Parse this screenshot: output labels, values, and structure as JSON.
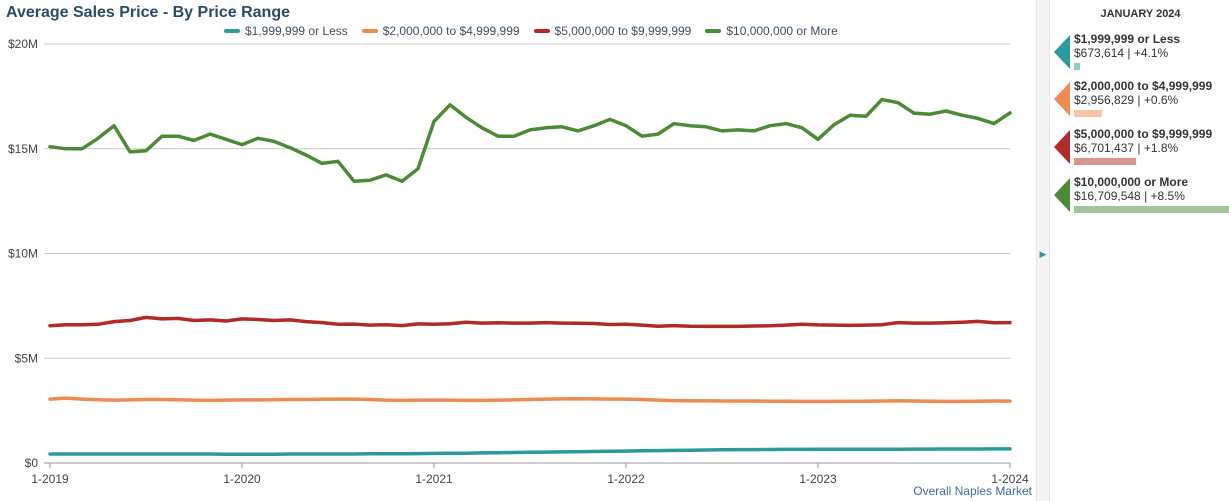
{
  "title": "Average Sales Price - By Price Range",
  "footer_note": "Overall Naples Market",
  "legend": [
    {
      "label": "$1,999,999 or Less",
      "color": "#2a9a9a"
    },
    {
      "label": "$2,000,000 to $4,999,999",
      "color": "#ee8b52"
    },
    {
      "label": "$5,000,000 to $9,999,999",
      "color": "#b02a2a"
    },
    {
      "label": "$10,000,000 or More",
      "color": "#4d8a37"
    }
  ],
  "panel": {
    "month": "JANUARY 2024",
    "toggle_icon": "chevron-right-icon",
    "items": [
      {
        "name": "$1,999,999 or Less",
        "value": "$673,614 | +4.1%",
        "color": "#2a9a9a",
        "level": 0.04
      },
      {
        "name": "$2,000,000 to $4,999,999",
        "value": "$2,956,829 | +0.6%",
        "color": "#ee8b52",
        "level": 0.18
      },
      {
        "name": "$5,000,000 to $9,999,999",
        "value": "$6,701,437 | +1.8%",
        "color": "#b02a2a",
        "level": 0.4
      },
      {
        "name": "$10,000,000 or More",
        "value": "$16,709,548 | +8.5%",
        "color": "#4d8a37",
        "level": 1.0
      }
    ]
  },
  "chart_data": {
    "type": "line",
    "title": "Average Sales Price - By Price Range",
    "xlabel": "",
    "ylabel": "",
    "ylim": [
      0,
      20000000
    ],
    "yticks": [
      0,
      5000000,
      10000000,
      15000000,
      20000000
    ],
    "ytick_labels": [
      "$0",
      "$5M",
      "$10M",
      "$15M",
      "$20M"
    ],
    "xticks": [
      0,
      12,
      24,
      36,
      48,
      60
    ],
    "xtick_labels": [
      "1-2019",
      "1-2020",
      "1-2021",
      "1-2022",
      "1-2023",
      "1-2024"
    ],
    "x_range": [
      0,
      60
    ],
    "grid": true,
    "legend_position": "top",
    "series": [
      {
        "name": "$1,999,999 or Less",
        "color": "#2a9a9a",
        "values": [
          430000,
          430000,
          430000,
          430000,
          430000,
          430000,
          430000,
          430000,
          430000,
          430000,
          430000,
          420000,
          420000,
          420000,
          420000,
          430000,
          430000,
          430000,
          430000,
          430000,
          440000,
          440000,
          440000,
          450000,
          460000,
          470000,
          470000,
          480000,
          490000,
          500000,
          510000,
          520000,
          530000,
          540000,
          550000,
          560000,
          570000,
          580000,
          590000,
          600000,
          610000,
          620000,
          630000,
          640000,
          640000,
          645000,
          650000,
          650000,
          655000,
          655000,
          660000,
          660000,
          660000,
          660000,
          665000,
          665000,
          668000,
          670000,
          670000,
          672000,
          673614
        ]
      },
      {
        "name": "$2,000,000 to $4,999,999",
        "color": "#ee8b52",
        "values": [
          3050000,
          3100000,
          3050000,
          3020000,
          3000000,
          3010000,
          3030000,
          3030000,
          3020000,
          3000000,
          2990000,
          3000000,
          3010000,
          3010000,
          3020000,
          3030000,
          3030000,
          3040000,
          3050000,
          3050000,
          3030000,
          3000000,
          2990000,
          3000000,
          3000000,
          3000000,
          2990000,
          2990000,
          3000000,
          3010000,
          3030000,
          3050000,
          3060000,
          3070000,
          3060000,
          3050000,
          3050000,
          3030000,
          3000000,
          2980000,
          2970000,
          2970000,
          2960000,
          2960000,
          2960000,
          2950000,
          2950000,
          2940000,
          2940000,
          2940000,
          2950000,
          2950000,
          2960000,
          2970000,
          2960000,
          2950000,
          2940000,
          2940000,
          2950000,
          2960000,
          2956829
        ]
      },
      {
        "name": "$5,000,000 to $9,999,999",
        "color": "#b02a2a",
        "values": [
          6550000,
          6600000,
          6600000,
          6620000,
          6750000,
          6800000,
          6950000,
          6880000,
          6900000,
          6800000,
          6830000,
          6780000,
          6880000,
          6850000,
          6800000,
          6830000,
          6750000,
          6700000,
          6620000,
          6630000,
          6580000,
          6600000,
          6560000,
          6640000,
          6620000,
          6650000,
          6720000,
          6680000,
          6690000,
          6680000,
          6680000,
          6700000,
          6680000,
          6670000,
          6660000,
          6610000,
          6620000,
          6580000,
          6530000,
          6560000,
          6530000,
          6520000,
          6520000,
          6520000,
          6540000,
          6550000,
          6580000,
          6620000,
          6590000,
          6580000,
          6570000,
          6580000,
          6600000,
          6700000,
          6680000,
          6680000,
          6690000,
          6720000,
          6760000,
          6690000,
          6701437
        ]
      },
      {
        "name": "$10,000,000 or More",
        "color": "#4d8a37",
        "values": [
          15100000,
          15000000,
          15000000,
          15500000,
          16100000,
          14850000,
          14900000,
          15600000,
          15600000,
          15400000,
          15700000,
          15450000,
          15200000,
          15500000,
          15350000,
          15050000,
          14700000,
          14300000,
          14400000,
          13450000,
          13500000,
          13750000,
          13450000,
          14050000,
          16300000,
          17100000,
          16500000,
          16000000,
          15600000,
          15600000,
          15900000,
          16000000,
          16050000,
          15850000,
          16100000,
          16400000,
          16100000,
          15600000,
          15700000,
          16200000,
          16100000,
          16050000,
          15850000,
          15900000,
          15850000,
          16100000,
          16200000,
          16000000,
          15450000,
          16150000,
          16600000,
          16550000,
          17350000,
          17200000,
          16700000,
          16650000,
          16800000,
          16600000,
          16450000,
          16200000,
          16709548
        ]
      }
    ]
  }
}
